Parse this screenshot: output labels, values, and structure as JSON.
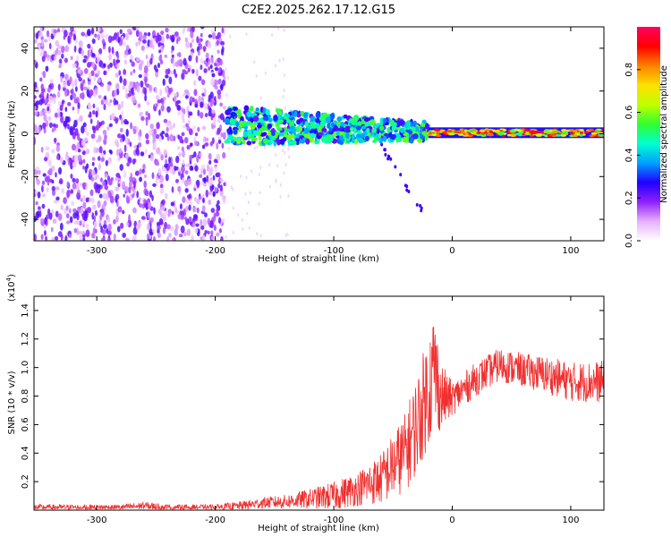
{
  "title": "C2E2.2025.262.17.12.G15",
  "colors": {
    "spec_low": "#f7f0ff",
    "spec_purple": "#9a55f0",
    "spec_blue": "#2a1ee6",
    "spec_cyan": "#18d8d8",
    "spec_green": "#44d040",
    "spec_red": "#f02020",
    "snr_line": "#f03030"
  },
  "chart_data": [
    {
      "type": "heatmap",
      "xlabel": "Height of straight line (km)",
      "ylabel": "Frequency (Hz)",
      "xlim": [
        -353,
        128
      ],
      "ylim": [
        -50,
        50
      ],
      "xticks": [
        -300,
        -200,
        -100,
        0,
        100
      ],
      "yticks": [
        -40,
        -20,
        0,
        20,
        40
      ],
      "colorbar": {
        "label": "Normalized spectral amplitude",
        "range": [
          0,
          1
        ],
        "ticks": [
          "0.0",
          "0.2",
          "0.4",
          "0.6",
          "0.8"
        ],
        "tick_values": [
          0,
          0.2,
          0.4,
          0.6,
          0.8
        ],
        "colormap": [
          "#ffffff",
          "#e6b0ff",
          "#9020ff",
          "#2000ff",
          "#00a0ff",
          "#00ffd0",
          "#30ff30",
          "#c0ff00",
          "#ffe000",
          "#ff8000",
          "#ff0000",
          "#ff0060"
        ]
      },
      "regions": [
        {
          "name": "noise",
          "x": [
            -353,
            -192
          ],
          "freq": [
            -50,
            50
          ],
          "amplitude": [
            0.05,
            0.25
          ]
        },
        {
          "name": "signal_spread",
          "x": [
            -190,
            -20
          ],
          "freq": [
            -10,
            12
          ],
          "amplitude": [
            0.2,
            0.6
          ]
        },
        {
          "name": "signal_line",
          "x": [
            -20,
            128
          ],
          "freq": [
            -1,
            2
          ],
          "amplitude": [
            0.5,
            1.0
          ]
        }
      ]
    },
    {
      "type": "line",
      "xlabel": "Height of straight line (km)",
      "ylabel": "SNR (10 * v/v)",
      "yscale_label": "(x10",
      "yscale_exp": "4",
      "yscale_close": ")",
      "xlim": [
        -353,
        128
      ],
      "ylim": [
        0,
        1.5
      ],
      "xticks": [
        -300,
        -200,
        -100,
        0,
        100
      ],
      "yticks": [
        "0.2",
        "0.4",
        "0.6",
        "0.8",
        "1.0",
        "1.2",
        "1.4"
      ],
      "ytick_values": [
        0.2,
        0.4,
        0.6,
        0.8,
        1.0,
        1.2,
        1.4
      ],
      "series": [
        {
          "x": [
            -353,
            -320,
            -280,
            -260,
            -240,
            -200,
            -180,
            -160,
            -140,
            -120,
            -100,
            -80,
            -60,
            -40,
            -30,
            -20,
            -15,
            -10,
            0,
            20,
            40,
            60,
            80,
            100,
            128
          ],
          "y": [
            0.02,
            0.02,
            0.02,
            0.03,
            0.02,
            0.02,
            0.03,
            0.05,
            0.06,
            0.08,
            0.1,
            0.15,
            0.22,
            0.4,
            0.6,
            0.85,
            1.0,
            0.8,
            0.78,
            0.92,
            1.02,
            0.98,
            0.95,
            0.9,
            0.9
          ],
          "noise": [
            0.02,
            0.02,
            0.02,
            0.03,
            0.02,
            0.02,
            0.03,
            0.04,
            0.05,
            0.07,
            0.1,
            0.12,
            0.18,
            0.28,
            0.35,
            0.4,
            0.45,
            0.25,
            0.12,
            0.12,
            0.12,
            0.12,
            0.13,
            0.14,
            0.15
          ]
        }
      ]
    }
  ]
}
